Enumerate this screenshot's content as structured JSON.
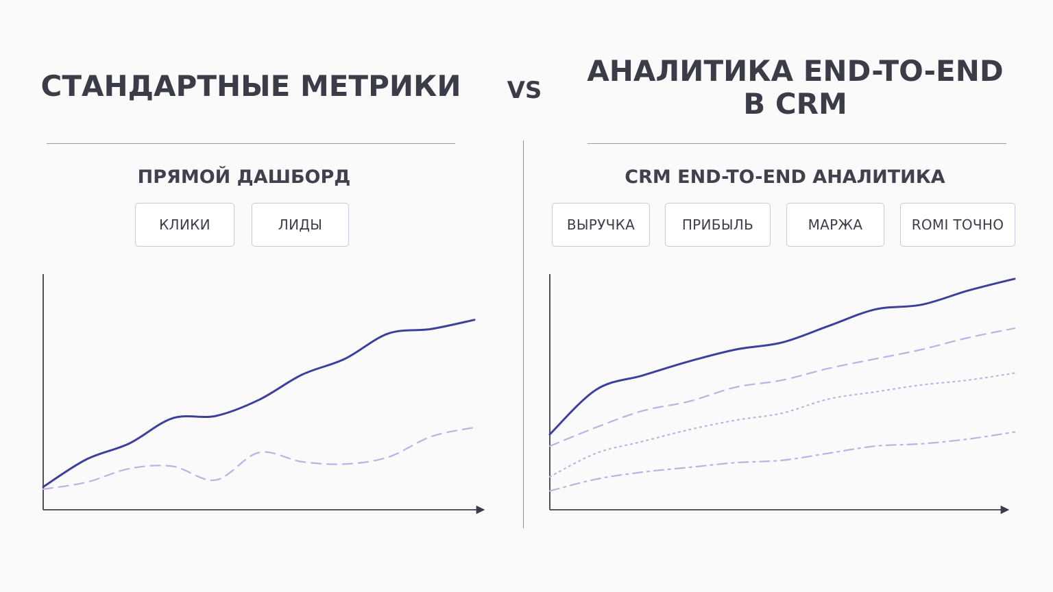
{
  "left_panel": {
    "title": "СТАНДАРТНЫЕ МЕТРИКИ",
    "subtitle": "ПРЯМОЙ ДАШБОРД",
    "tags": [
      "КЛИКИ",
      "ЛИДЫ"
    ]
  },
  "vs_label": "VS",
  "right_panel": {
    "title_line1": "АНАЛИТИКА END-TO-END",
    "title_line2": "В CRM",
    "subtitle": "CRM END-TO-END АНАЛИТИКА",
    "tags": [
      "ВЫРУЧКА",
      "ПРИБЫЛЬ",
      "МАРЖА",
      "ROMI ТОЧНО"
    ]
  },
  "colors": {
    "primary_line": "#3d3f9c",
    "secondary_line": "#b7b3e2",
    "axis": "#3a3c48",
    "divider": "#9898b4"
  },
  "chart_data": [
    {
      "type": "line",
      "xlim": [
        0,
        10
      ],
      "ylim": [
        0,
        10
      ],
      "series": [
        {
          "style": "solid",
          "x": [
            0,
            1,
            2,
            3,
            4,
            5,
            6,
            7,
            8,
            9,
            10
          ],
          "y": [
            1.0,
            2.2,
            2.9,
            4.0,
            4.1,
            4.8,
            5.9,
            6.6,
            7.7,
            7.9,
            8.3
          ]
        },
        {
          "style": "dashed",
          "x": [
            0,
            1,
            2,
            3,
            4,
            5,
            6,
            7,
            8,
            9,
            10
          ],
          "y": [
            0.9,
            1.2,
            1.8,
            1.9,
            1.3,
            2.5,
            2.1,
            2.0,
            2.3,
            3.2,
            3.6
          ]
        }
      ]
    },
    {
      "type": "line",
      "xlim": [
        0,
        10
      ],
      "ylim": [
        0,
        10
      ],
      "series": [
        {
          "style": "solid",
          "x": [
            0,
            1,
            2,
            3,
            4,
            5,
            6,
            7,
            8,
            9,
            10
          ],
          "y": [
            3.2,
            5.1,
            5.7,
            6.3,
            6.8,
            7.1,
            7.8,
            8.5,
            8.7,
            9.3,
            9.8
          ]
        },
        {
          "style": "dashed",
          "x": [
            0,
            1,
            2,
            3,
            4,
            5,
            6,
            7,
            8,
            9,
            10
          ],
          "y": [
            2.7,
            3.5,
            4.2,
            4.6,
            5.2,
            5.5,
            6.0,
            6.4,
            6.8,
            7.3,
            7.7
          ]
        },
        {
          "style": "dotted",
          "x": [
            0,
            1,
            2,
            3,
            4,
            5,
            6,
            7,
            8,
            9,
            10
          ],
          "y": [
            1.4,
            2.4,
            2.9,
            3.4,
            3.8,
            4.1,
            4.7,
            5.0,
            5.3,
            5.5,
            5.8
          ]
        },
        {
          "style": "dashdot",
          "x": [
            0,
            1,
            2,
            3,
            4,
            5,
            6,
            7,
            8,
            9,
            10
          ],
          "y": [
            0.8,
            1.3,
            1.6,
            1.8,
            2.0,
            2.1,
            2.4,
            2.7,
            2.8,
            3.0,
            3.3
          ]
        }
      ]
    }
  ]
}
